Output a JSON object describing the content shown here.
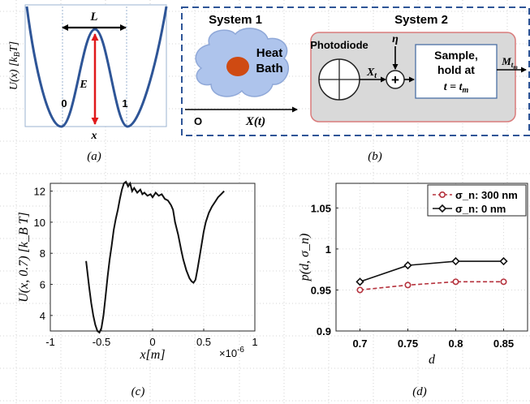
{
  "panel_a": {
    "caption": "(a)",
    "ylabel": "U(x)  [k",
    "ylabel_sub": "B",
    "ylabel_end": "T]",
    "xlabel": "x",
    "L_label": "L",
    "E_label": "E",
    "well_left": "0",
    "well_right": "1"
  },
  "panel_b": {
    "caption": "(b)",
    "system1": "System 1",
    "system2": "System 2",
    "heat_bath_line1": "Heat",
    "heat_bath_line2": "Bath",
    "origin": "O",
    "x_of_t": "X(t)",
    "photodiode": "Photodiode",
    "eta": "η",
    "xt": "X",
    "xt_sub": "t",
    "plus": "+",
    "sample_line1": "Sample,",
    "sample_line2": "hold at",
    "sample_line3": "t = t",
    "sample_line3_sub": "m",
    "output": "M",
    "output_sub": "t",
    "output_subsub": "m"
  },
  "panel_c": {
    "caption": "(c)",
    "xscale": "×10",
    "xscale_exp": "-6"
  },
  "panel_d": {
    "caption": "(d)"
  },
  "chart_data": [
    {
      "type": "line",
      "ylabel": "U(x, 0.7) [k_B T]",
      "xlabel": "x[m]",
      "x_multiplier": "×10^-6",
      "xlim": [
        -1,
        1
      ],
      "ylim": [
        3,
        12.5
      ],
      "xticks": [
        "-1",
        "-0.5",
        "0",
        "0.5",
        "1"
      ],
      "yticks": [
        "4",
        "6",
        "8",
        "10",
        "12"
      ],
      "grid": true,
      "series": [
        {
          "x": [
            -0.65,
            -0.62,
            -0.6,
            -0.58,
            -0.56,
            -0.54,
            -0.52,
            -0.5,
            -0.48,
            -0.46,
            -0.44,
            -0.42,
            -0.4,
            -0.38,
            -0.36,
            -0.34,
            -0.32,
            -0.3,
            -0.28,
            -0.26,
            -0.24,
            -0.22,
            -0.2,
            -0.18,
            -0.15,
            -0.12,
            -0.1,
            -0.08,
            -0.05,
            -0.02,
            0.0,
            0.03,
            0.06,
            0.09,
            0.12,
            0.15,
            0.18,
            0.2,
            0.22,
            0.25,
            0.28,
            0.3,
            0.33,
            0.36,
            0.38,
            0.4,
            0.42,
            0.44,
            0.46,
            0.48,
            0.5,
            0.52,
            0.55,
            0.58,
            0.61,
            0.64,
            0.67,
            0.7
          ],
          "y": [
            7.5,
            5.8,
            4.8,
            4.0,
            3.4,
            3.0,
            2.9,
            3.2,
            4.0,
            5.2,
            6.5,
            7.6,
            8.5,
            9.5,
            10.2,
            10.8,
            11.5,
            12.1,
            12.5,
            12.6,
            12.3,
            12.5,
            12.0,
            12.2,
            11.9,
            12.1,
            11.8,
            11.9,
            11.7,
            11.8,
            11.6,
            11.9,
            11.7,
            11.8,
            11.5,
            11.4,
            11.1,
            10.8,
            10.0,
            9.2,
            8.2,
            7.6,
            6.9,
            6.4,
            6.2,
            6.1,
            6.3,
            7.0,
            7.8,
            8.6,
            9.4,
            10.0,
            10.6,
            11.0,
            11.3,
            11.6,
            11.8,
            12.0
          ]
        }
      ]
    },
    {
      "type": "line",
      "ylabel": "p(d, σ_n)",
      "xlabel": "d",
      "xlim": [
        0.675,
        0.875
      ],
      "ylim": [
        0.9,
        1.08
      ],
      "xticks": [
        "0.7",
        "0.75",
        "0.8",
        "0.85"
      ],
      "yticks": [
        "0.9",
        "0.95",
        "1",
        "1.05"
      ],
      "grid": true,
      "legend": "top-right",
      "categories": [
        0.7,
        0.75,
        0.8,
        0.85
      ],
      "series": [
        {
          "name": "σ_n: 300 nm",
          "values": [
            0.95,
            0.956,
            0.96,
            0.96
          ],
          "color": "#b5323d",
          "style": "dashed",
          "marker": "circle"
        },
        {
          "name": "σ_n: 0 nm",
          "values": [
            0.96,
            0.98,
            0.985,
            0.985
          ],
          "color": "#111111",
          "style": "solid",
          "marker": "diamond"
        }
      ]
    }
  ]
}
